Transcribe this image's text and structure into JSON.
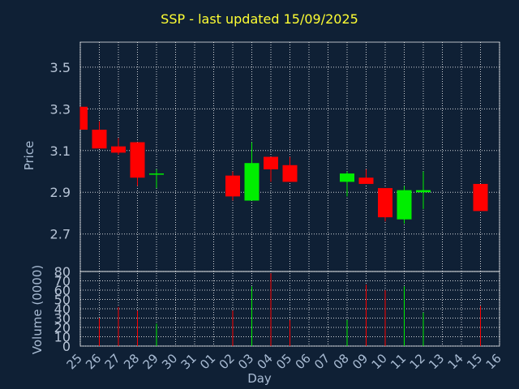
{
  "title": "SSP - last updated 15/09/2025",
  "colors": {
    "background": "#0f2035",
    "grid": "#ffffff",
    "axis_text": "#a9bcd4",
    "title": "#ffff33",
    "up": "#00ee00",
    "down": "#ff0000",
    "price_axis_text": "#b7c4d6"
  },
  "chart_data": [
    {
      "type": "candlestick",
      "ylabel": "Price",
      "xlabel": "",
      "ylim": [
        2.52,
        3.62
      ],
      "y_ticks": [
        "2.7",
        "2.9",
        "3.1",
        "3.3",
        "3.5"
      ],
      "y_tick_values": [
        2.7,
        2.9,
        3.1,
        3.3,
        3.5
      ],
      "grid": true,
      "x_tick_labels": [
        "25",
        "26",
        "27",
        "28",
        "29",
        "30",
        "31",
        "01",
        "02",
        "03",
        "04",
        "05",
        "06",
        "07",
        "08",
        "09",
        "10",
        "11",
        "12",
        "13",
        "14",
        "15",
        "16"
      ],
      "candles": [
        {
          "day": "25",
          "open": 3.31,
          "high": 3.31,
          "low": 3.2,
          "close": 3.2
        },
        {
          "day": "26",
          "open": 3.2,
          "high": 3.24,
          "low": 3.11,
          "close": 3.11
        },
        {
          "day": "27",
          "open": 3.12,
          "high": 3.16,
          "low": 3.08,
          "close": 3.09
        },
        {
          "day": "28",
          "open": 3.14,
          "high": 3.14,
          "low": 2.93,
          "close": 2.97
        },
        {
          "day": "29",
          "open": 2.99,
          "high": 3.01,
          "low": 2.92,
          "close": 2.99
        },
        {
          "day": "02",
          "open": 2.98,
          "high": 3.0,
          "low": 2.86,
          "close": 2.88
        },
        {
          "day": "03",
          "open": 2.86,
          "high": 3.14,
          "low": 2.86,
          "close": 3.04
        },
        {
          "day": "04",
          "open": 3.07,
          "high": 3.07,
          "low": 2.95,
          "close": 3.01
        },
        {
          "day": "05",
          "open": 3.03,
          "high": 3.07,
          "low": 2.95,
          "close": 2.95
        },
        {
          "day": "08",
          "open": 2.95,
          "high": 3.0,
          "low": 2.88,
          "close": 2.99
        },
        {
          "day": "09",
          "open": 2.97,
          "high": 3.01,
          "low": 2.94,
          "close": 2.94
        },
        {
          "day": "10",
          "open": 2.92,
          "high": 2.92,
          "low": 2.76,
          "close": 2.78
        },
        {
          "day": "11",
          "open": 2.77,
          "high": 2.93,
          "low": 2.75,
          "close": 2.91
        },
        {
          "day": "12",
          "open": 2.9,
          "high": 3.0,
          "low": 2.82,
          "close": 2.91
        },
        {
          "day": "15",
          "open": 2.94,
          "high": 2.94,
          "low": 2.81,
          "close": 2.81
        }
      ]
    },
    {
      "type": "bar",
      "ylabel": "Volume (0000)",
      "xlabel": "Day",
      "ylim": [
        0,
        80
      ],
      "y_ticks": [
        "0",
        "10",
        "20",
        "30",
        "40",
        "50",
        "60",
        "70",
        "80"
      ],
      "y_tick_values": [
        0,
        10,
        20,
        30,
        40,
        50,
        60,
        70,
        80
      ],
      "grid": true,
      "x_tick_labels": [
        "25",
        "26",
        "27",
        "28",
        "29",
        "30",
        "31",
        "01",
        "02",
        "03",
        "04",
        "05",
        "06",
        "07",
        "08",
        "09",
        "10",
        "11",
        "12",
        "13",
        "14",
        "15",
        "16"
      ],
      "bars": [
        {
          "day": "26",
          "value": 30,
          "direction": "down"
        },
        {
          "day": "27",
          "value": 42,
          "direction": "down"
        },
        {
          "day": "28",
          "value": 38,
          "direction": "down"
        },
        {
          "day": "29",
          "value": 24,
          "direction": "up"
        },
        {
          "day": "02",
          "value": 38,
          "direction": "down"
        },
        {
          "day": "03",
          "value": 64,
          "direction": "up"
        },
        {
          "day": "04",
          "value": 78,
          "direction": "down"
        },
        {
          "day": "05",
          "value": 28,
          "direction": "down"
        },
        {
          "day": "08",
          "value": 28,
          "direction": "up"
        },
        {
          "day": "09",
          "value": 66,
          "direction": "down"
        },
        {
          "day": "10",
          "value": 60,
          "direction": "down"
        },
        {
          "day": "11",
          "value": 64,
          "direction": "up"
        },
        {
          "day": "12",
          "value": 36,
          "direction": "up"
        },
        {
          "day": "15",
          "value": 43,
          "direction": "down"
        }
      ]
    }
  ]
}
